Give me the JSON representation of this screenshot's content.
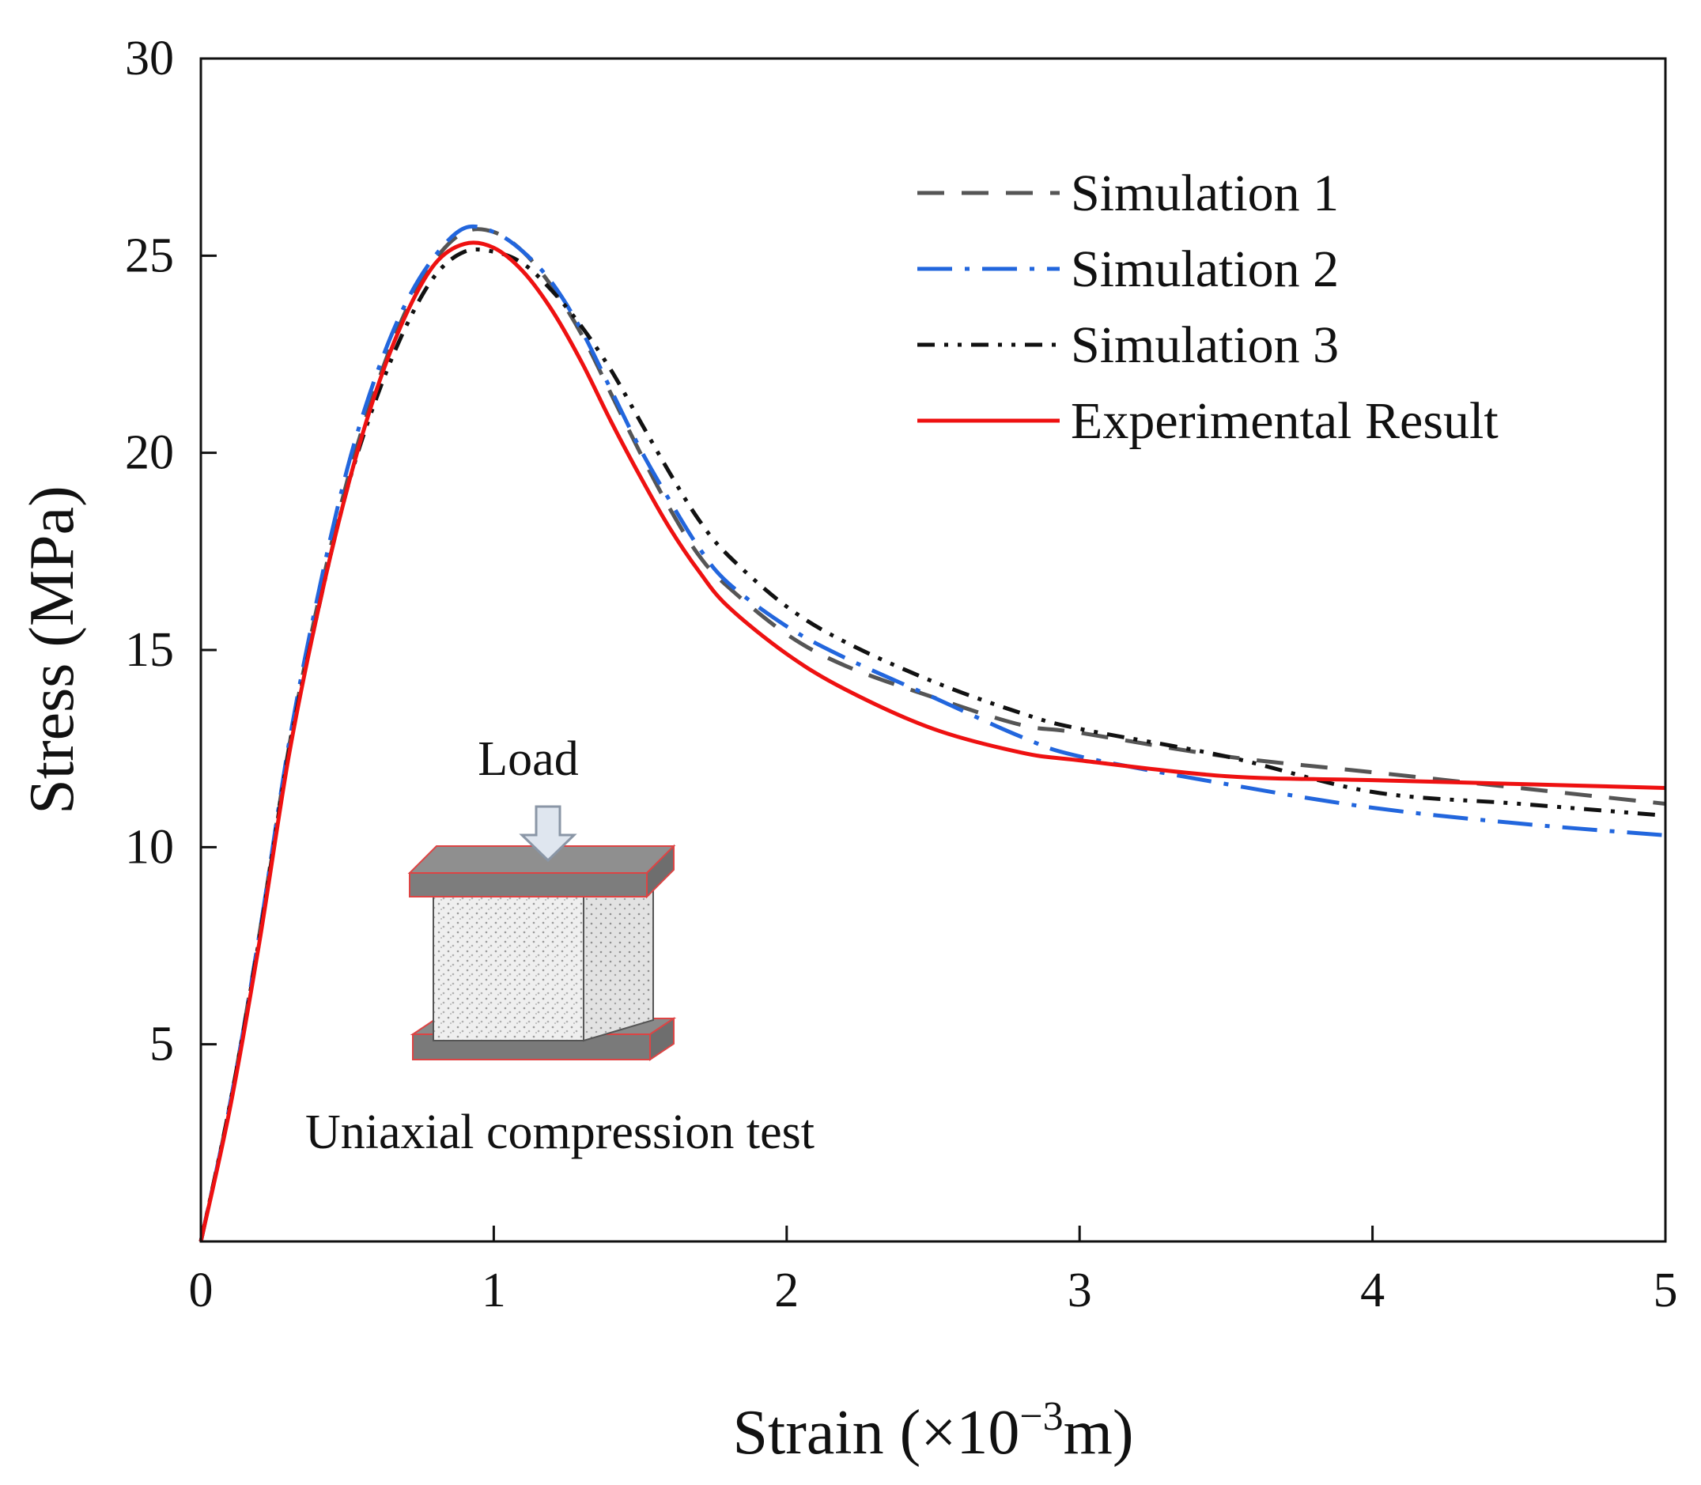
{
  "chart_data": {
    "type": "line",
    "title": "",
    "xlabel": "Strain (×10⁻³m)",
    "xlabel_parts": {
      "main": "Strain (×10",
      "sup": "−3",
      "tail": "m)"
    },
    "ylabel": "Stress (MPa)",
    "xlim": [
      0,
      5
    ],
    "ylim": [
      0,
      30
    ],
    "xticks": [
      0,
      1,
      2,
      3,
      4,
      5
    ],
    "xtick_labels": [
      "0",
      "1",
      "2",
      "3",
      "4",
      "5"
    ],
    "yticks": [
      5,
      10,
      15,
      20,
      25,
      30
    ],
    "ytick_labels": [
      "5",
      "10",
      "15",
      "20",
      "25",
      "30"
    ],
    "grid": false,
    "legend_position": "top-right",
    "series": [
      {
        "name": "Simulation 1",
        "color": "#555555",
        "dash": "dashed",
        "points": [
          [
            0,
            0
          ],
          [
            0.1,
            3.5
          ],
          [
            0.2,
            7.8
          ],
          [
            0.3,
            12.5
          ],
          [
            0.4,
            16.2
          ],
          [
            0.5,
            19.3
          ],
          [
            0.6,
            21.7
          ],
          [
            0.7,
            23.6
          ],
          [
            0.8,
            24.9
          ],
          [
            0.9,
            25.6
          ],
          [
            1.0,
            25.6
          ],
          [
            1.1,
            25.1
          ],
          [
            1.2,
            24.2
          ],
          [
            1.3,
            23.0
          ],
          [
            1.4,
            21.5
          ],
          [
            1.5,
            20.0
          ],
          [
            1.6,
            18.6
          ],
          [
            1.7,
            17.4
          ],
          [
            1.8,
            16.6
          ],
          [
            2.0,
            15.4
          ],
          [
            2.2,
            14.6
          ],
          [
            2.5,
            13.8
          ],
          [
            2.8,
            13.1
          ],
          [
            3.0,
            12.9
          ],
          [
            3.5,
            12.3
          ],
          [
            4.0,
            11.9
          ],
          [
            4.5,
            11.5
          ],
          [
            5.0,
            11.1
          ]
        ]
      },
      {
        "name": "Simulation 2",
        "color": "#2266dd",
        "dash": "dash-dot",
        "points": [
          [
            0,
            0
          ],
          [
            0.1,
            3.5
          ],
          [
            0.2,
            7.8
          ],
          [
            0.3,
            12.6
          ],
          [
            0.4,
            16.4
          ],
          [
            0.5,
            19.6
          ],
          [
            0.6,
            22.0
          ],
          [
            0.7,
            23.8
          ],
          [
            0.8,
            25.0
          ],
          [
            0.9,
            25.7
          ],
          [
            1.0,
            25.6
          ],
          [
            1.1,
            25.1
          ],
          [
            1.2,
            24.3
          ],
          [
            1.3,
            23.1
          ],
          [
            1.4,
            21.6
          ],
          [
            1.5,
            20.1
          ],
          [
            1.6,
            18.8
          ],
          [
            1.7,
            17.6
          ],
          [
            1.8,
            16.7
          ],
          [
            2.0,
            15.6
          ],
          [
            2.2,
            14.8
          ],
          [
            2.5,
            13.8
          ],
          [
            2.8,
            12.8
          ],
          [
            3.0,
            12.3
          ],
          [
            3.5,
            11.6
          ],
          [
            4.0,
            11.0
          ],
          [
            4.5,
            10.6
          ],
          [
            5.0,
            10.3
          ]
        ]
      },
      {
        "name": "Simulation 3",
        "color": "#111111",
        "dash": "dash-dot-dot",
        "points": [
          [
            0,
            0
          ],
          [
            0.1,
            3.5
          ],
          [
            0.2,
            7.7
          ],
          [
            0.3,
            12.4
          ],
          [
            0.4,
            16.0
          ],
          [
            0.5,
            19.1
          ],
          [
            0.6,
            21.4
          ],
          [
            0.7,
            23.2
          ],
          [
            0.8,
            24.5
          ],
          [
            0.9,
            25.1
          ],
          [
            1.0,
            25.1
          ],
          [
            1.1,
            24.8
          ],
          [
            1.2,
            24.1
          ],
          [
            1.3,
            23.2
          ],
          [
            1.4,
            22.1
          ],
          [
            1.5,
            20.8
          ],
          [
            1.6,
            19.5
          ],
          [
            1.7,
            18.3
          ],
          [
            1.8,
            17.4
          ],
          [
            2.0,
            16.1
          ],
          [
            2.2,
            15.2
          ],
          [
            2.5,
            14.2
          ],
          [
            2.8,
            13.4
          ],
          [
            3.0,
            13.0
          ],
          [
            3.5,
            12.3
          ],
          [
            4.0,
            11.4
          ],
          [
            4.5,
            11.1
          ],
          [
            5.0,
            10.8
          ]
        ]
      },
      {
        "name": "Experimental Result",
        "color": "#ee1111",
        "dash": "solid",
        "points": [
          [
            0,
            0
          ],
          [
            0.1,
            3.4
          ],
          [
            0.2,
            7.6
          ],
          [
            0.3,
            12.3
          ],
          [
            0.4,
            16.0
          ],
          [
            0.5,
            19.1
          ],
          [
            0.6,
            21.6
          ],
          [
            0.7,
            23.5
          ],
          [
            0.8,
            24.8
          ],
          [
            0.9,
            25.3
          ],
          [
            1.0,
            25.2
          ],
          [
            1.1,
            24.6
          ],
          [
            1.2,
            23.6
          ],
          [
            1.3,
            22.3
          ],
          [
            1.4,
            20.8
          ],
          [
            1.5,
            19.4
          ],
          [
            1.6,
            18.1
          ],
          [
            1.7,
            17.0
          ],
          [
            1.8,
            16.1
          ],
          [
            2.0,
            14.9
          ],
          [
            2.2,
            14.0
          ],
          [
            2.5,
            13.0
          ],
          [
            2.8,
            12.4
          ],
          [
            3.0,
            12.2
          ],
          [
            3.5,
            11.8
          ],
          [
            4.0,
            11.7
          ],
          [
            4.5,
            11.6
          ],
          [
            5.0,
            11.5
          ]
        ]
      }
    ],
    "annotations": {
      "load_label": "Load",
      "test_caption": "Uniaxial compression test"
    }
  }
}
